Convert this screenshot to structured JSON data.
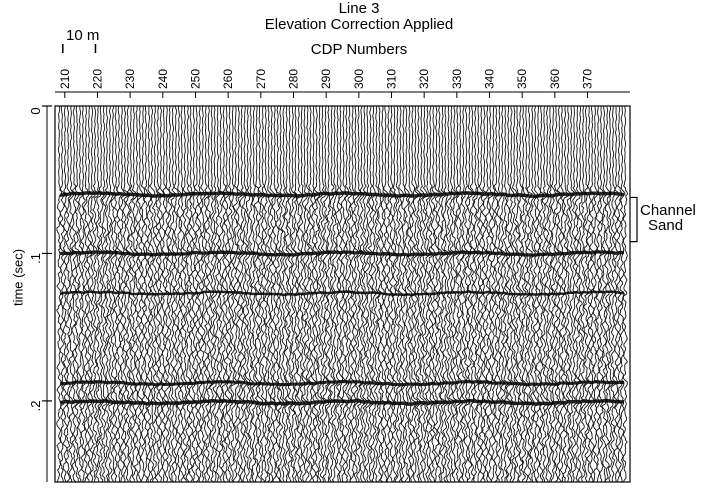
{
  "chart_data": {
    "type": "seismic-section",
    "title": "Line 3",
    "subtitle": "Elevation Correction Applied",
    "xlabel": "CDP Numbers",
    "ylabel": "time (sec)",
    "x_ticks": [
      210,
      220,
      230,
      240,
      250,
      260,
      270,
      280,
      290,
      300,
      310,
      320,
      330,
      340,
      350,
      360,
      370
    ],
    "y_ticks": [
      "0",
      ".1",
      ".2"
    ],
    "y_tick_values": [
      0,
      0.1,
      0.2
    ],
    "xlim": [
      207,
      383
    ],
    "ylim": [
      0,
      0.255
    ],
    "scale_bar": {
      "label": "10 m",
      "from": 210,
      "to": 220
    },
    "annotation": {
      "label_line1": "Channel",
      "label_line2": "Sand",
      "t_from": 0.062,
      "t_to": 0.092
    },
    "reflectors": [
      {
        "t": 0.06,
        "strength": 1.0
      },
      {
        "t": 0.1,
        "strength": 0.9
      },
      {
        "t": 0.127,
        "strength": 0.5
      },
      {
        "t": 0.188,
        "strength": 0.8
      },
      {
        "t": 0.201,
        "strength": 1.0
      }
    ]
  }
}
